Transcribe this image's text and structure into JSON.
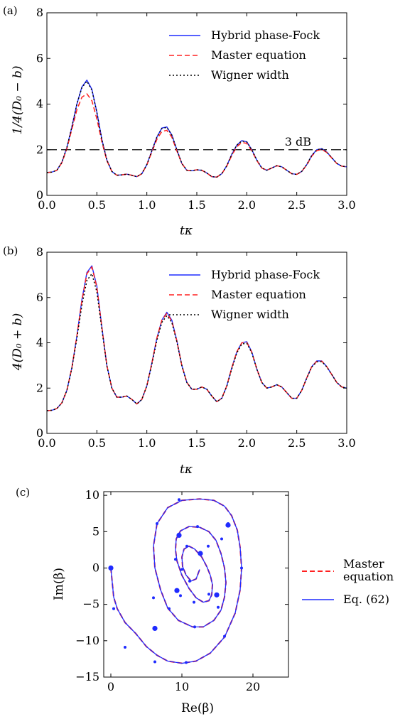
{
  "chart_data": [
    {
      "type": "line",
      "panel_label": "(a)",
      "xlabel": "tκ",
      "ylabel": "1/4(D₀ − b)",
      "xlim": [
        0,
        3
      ],
      "ylim": [
        0,
        8
      ],
      "xticks": [
        0,
        0.5,
        1,
        1.5,
        2,
        2.5,
        3
      ],
      "xtick_labels": [
        "0.0",
        "0.5",
        "1.0",
        "1.5",
        "2.0",
        "2.5",
        "3.0"
      ],
      "yticks": [
        0,
        2,
        4,
        6,
        8
      ],
      "ytick_labels": [
        "0",
        "2",
        "4",
        "6",
        "8"
      ],
      "legend_position": "top-right",
      "series": [
        {
          "name": "Hybrid phase-Fock",
          "style": "solid",
          "color": "#1f2bff"
        },
        {
          "name": "Master equation",
          "style": "dashed",
          "color": "#ff2020"
        },
        {
          "name": "Wigner width",
          "style": "dotted",
          "color": "#000000"
        }
      ],
      "x": [
        0,
        0.05,
        0.1,
        0.15,
        0.2,
        0.25,
        0.3,
        0.35,
        0.4,
        0.45,
        0.5,
        0.55,
        0.6,
        0.65,
        0.7,
        0.75,
        0.8,
        0.85,
        0.9,
        0.95,
        1.0,
        1.05,
        1.1,
        1.15,
        1.2,
        1.25,
        1.3,
        1.35,
        1.4,
        1.45,
        1.5,
        1.55,
        1.6,
        1.65,
        1.7,
        1.75,
        1.8,
        1.85,
        1.9,
        1.95,
        2.0,
        2.05,
        2.1,
        2.15,
        2.2,
        2.25,
        2.3,
        2.35,
        2.4,
        2.45,
        2.5,
        2.55,
        2.6,
        2.65,
        2.7,
        2.75,
        2.8,
        2.85,
        2.9,
        2.95,
        3.0
      ],
      "values": {
        "Hybrid phase-Fock": [
          1.0,
          1.02,
          1.1,
          1.45,
          2.1,
          3.0,
          4.0,
          4.75,
          5.05,
          4.65,
          3.65,
          2.45,
          1.55,
          1.05,
          0.88,
          0.9,
          0.93,
          0.88,
          0.82,
          0.95,
          1.35,
          1.95,
          2.55,
          2.95,
          3.0,
          2.65,
          2.0,
          1.4,
          1.1,
          1.08,
          1.12,
          1.1,
          0.98,
          0.82,
          0.8,
          0.95,
          1.3,
          1.8,
          2.2,
          2.4,
          2.35,
          2.0,
          1.55,
          1.2,
          1.1,
          1.2,
          1.3,
          1.25,
          1.1,
          0.95,
          0.92,
          1.05,
          1.35,
          1.75,
          2.0,
          2.05,
          1.9,
          1.65,
          1.4,
          1.28,
          1.25
        ],
        "Master equation": [
          1.0,
          1.02,
          1.1,
          1.43,
          2.05,
          2.9,
          3.75,
          4.3,
          4.45,
          4.15,
          3.35,
          2.35,
          1.52,
          1.05,
          0.88,
          0.9,
          0.93,
          0.88,
          0.82,
          0.95,
          1.33,
          1.9,
          2.45,
          2.8,
          2.85,
          2.55,
          1.95,
          1.4,
          1.1,
          1.08,
          1.12,
          1.1,
          0.98,
          0.82,
          0.8,
          0.95,
          1.28,
          1.75,
          2.13,
          2.32,
          2.28,
          1.96,
          1.53,
          1.2,
          1.1,
          1.2,
          1.3,
          1.25,
          1.1,
          0.95,
          0.92,
          1.05,
          1.33,
          1.72,
          1.96,
          2.02,
          1.88,
          1.64,
          1.4,
          1.28,
          1.25
        ],
        "Wigner width": [
          1.0,
          1.02,
          1.1,
          1.45,
          2.1,
          3.0,
          4.0,
          4.72,
          5.0,
          4.62,
          3.63,
          2.44,
          1.55,
          1.05,
          0.88,
          0.9,
          0.93,
          0.88,
          0.82,
          0.95,
          1.35,
          1.95,
          2.55,
          2.93,
          2.98,
          2.64,
          2.0,
          1.4,
          1.1,
          1.08,
          1.12,
          1.1,
          0.98,
          0.82,
          0.8,
          0.95,
          1.3,
          1.8,
          2.2,
          2.38,
          2.34,
          2.0,
          1.55,
          1.2,
          1.1,
          1.2,
          1.3,
          1.25,
          1.1,
          0.95,
          0.92,
          1.05,
          1.35,
          1.75,
          2.0,
          2.04,
          1.9,
          1.65,
          1.4,
          1.28,
          1.25
        ]
      },
      "reference_line": {
        "y": 2,
        "label": "3 dB",
        "style": "long-dash",
        "color": "#000000"
      }
    },
    {
      "type": "line",
      "panel_label": "(b)",
      "xlabel": "tκ",
      "ylabel": "4(D₀ + b)",
      "xlim": [
        0,
        3
      ],
      "ylim": [
        0,
        8
      ],
      "xticks": [
        0,
        0.5,
        1,
        1.5,
        2,
        2.5,
        3
      ],
      "xtick_labels": [
        "0.0",
        "0.5",
        "1.0",
        "1.5",
        "2.0",
        "2.5",
        "3.0"
      ],
      "yticks": [
        0,
        2,
        4,
        6,
        8
      ],
      "ytick_labels": [
        "0",
        "2",
        "4",
        "6",
        "8"
      ],
      "legend_position": "top-right",
      "series": [
        {
          "name": "Hybrid phase-Fock",
          "style": "solid",
          "color": "#1f2bff"
        },
        {
          "name": "Master equation",
          "style": "dashed",
          "color": "#ff2020"
        },
        {
          "name": "Wigner width",
          "style": "dotted",
          "color": "#000000"
        }
      ],
      "x": [
        0,
        0.05,
        0.1,
        0.15,
        0.2,
        0.25,
        0.3,
        0.35,
        0.4,
        0.45,
        0.5,
        0.55,
        0.6,
        0.65,
        0.7,
        0.75,
        0.8,
        0.85,
        0.9,
        0.95,
        1.0,
        1.05,
        1.1,
        1.15,
        1.2,
        1.25,
        1.3,
        1.35,
        1.4,
        1.45,
        1.5,
        1.55,
        1.6,
        1.65,
        1.7,
        1.75,
        1.8,
        1.85,
        1.9,
        1.95,
        2.0,
        2.05,
        2.1,
        2.15,
        2.2,
        2.25,
        2.3,
        2.35,
        2.4,
        2.45,
        2.5,
        2.55,
        2.6,
        2.65,
        2.7,
        2.75,
        2.8,
        2.85,
        2.9,
        2.95,
        3.0
      ],
      "values": {
        "Hybrid phase-Fock": [
          1.0,
          1.02,
          1.1,
          1.35,
          1.9,
          2.9,
          4.3,
          5.9,
          7.1,
          7.4,
          6.5,
          4.7,
          3.0,
          2.0,
          1.6,
          1.6,
          1.65,
          1.5,
          1.3,
          1.5,
          2.1,
          3.1,
          4.2,
          5.0,
          5.35,
          5.0,
          4.1,
          3.0,
          2.25,
          1.95,
          1.95,
          2.05,
          1.95,
          1.65,
          1.4,
          1.55,
          2.1,
          2.9,
          3.6,
          4.0,
          4.05,
          3.6,
          2.85,
          2.25,
          2.0,
          2.05,
          2.15,
          2.05,
          1.8,
          1.55,
          1.55,
          1.9,
          2.45,
          2.95,
          3.2,
          3.2,
          2.95,
          2.6,
          2.25,
          2.05,
          2.0
        ],
        "Master equation": [
          1.0,
          1.02,
          1.1,
          1.35,
          1.9,
          2.9,
          4.3,
          5.85,
          7.05,
          7.35,
          6.45,
          4.68,
          3.0,
          2.0,
          1.6,
          1.6,
          1.65,
          1.5,
          1.3,
          1.5,
          2.1,
          3.1,
          4.2,
          5.0,
          5.3,
          4.96,
          4.08,
          3.0,
          2.25,
          1.95,
          1.95,
          2.05,
          1.95,
          1.65,
          1.4,
          1.55,
          2.1,
          2.9,
          3.6,
          4.0,
          4.02,
          3.58,
          2.85,
          2.25,
          2.0,
          2.05,
          2.15,
          2.05,
          1.8,
          1.55,
          1.55,
          1.9,
          2.45,
          2.95,
          3.18,
          3.19,
          2.95,
          2.6,
          2.25,
          2.05,
          2.0
        ],
        "Wigner width": [
          1.0,
          1.02,
          1.1,
          1.35,
          1.9,
          2.88,
          4.2,
          5.65,
          6.75,
          7.05,
          6.25,
          4.6,
          2.98,
          2.0,
          1.6,
          1.6,
          1.65,
          1.5,
          1.3,
          1.5,
          2.1,
          3.05,
          4.1,
          4.9,
          5.2,
          4.9,
          4.05,
          3.0,
          2.25,
          1.95,
          1.95,
          2.05,
          1.95,
          1.65,
          1.4,
          1.55,
          2.08,
          2.85,
          3.55,
          3.95,
          3.98,
          3.56,
          2.84,
          2.25,
          2.0,
          2.05,
          2.15,
          2.05,
          1.8,
          1.55,
          1.55,
          1.9,
          2.44,
          2.93,
          3.16,
          3.17,
          2.94,
          2.6,
          2.25,
          2.05,
          2.0
        ]
      }
    },
    {
      "type": "line",
      "panel_label": "(c)",
      "xlabel": "Re(β)",
      "ylabel": "Im(β)",
      "xlim": [
        -1,
        25
      ],
      "ylim": [
        -15,
        10.5
      ],
      "xticks": [
        0,
        10,
        20
      ],
      "xtick_labels": [
        "0",
        "10",
        "20"
      ],
      "yticks": [
        -15,
        -10,
        -5,
        0,
        5,
        10
      ],
      "ytick_labels": [
        "−15",
        "−10",
        "−5",
        "0",
        "5",
        "10"
      ],
      "legend_position": "right, outside",
      "series": [
        {
          "name": "Master equation",
          "style": "dashed",
          "color": "#ff2020"
        },
        {
          "name": "Eq. (62)",
          "style": "solid",
          "color": "#1f2bff"
        }
      ],
      "trajectory": {
        "re": [
          0,
          0.2,
          0.4,
          0.9,
          2,
          3.5,
          5,
          6.5,
          8,
          10,
          12,
          14,
          16,
          17.5,
          18.2,
          18.4,
          18.2,
          17.8,
          17,
          16,
          14.5,
          12.5,
          10,
          8,
          6.5,
          6,
          6.2,
          7,
          8,
          9.5,
          11.5,
          13,
          14.5,
          15.5,
          16,
          16.2,
          16,
          15.5,
          14.8,
          13.8,
          12.5,
          11,
          9.8,
          9.2,
          9.1,
          9.3,
          10,
          11,
          12,
          13,
          13.8,
          14.2,
          14.3,
          14,
          13.5,
          12.8,
          11.8,
          11,
          10.3,
          10,
          10.1,
          10.6,
          11.3,
          12,
          12.5
        ],
        "im": [
          0,
          -2,
          -4,
          -5.6,
          -7.5,
          -9,
          -10.8,
          -12,
          -12.8,
          -13.1,
          -12.8,
          -11.7,
          -9.5,
          -6.2,
          -3,
          0,
          2.8,
          5.2,
          7.2,
          8.5,
          9.3,
          9.5,
          9.3,
          8.3,
          6.1,
          3,
          0,
          -3,
          -5.5,
          -7.2,
          -8.1,
          -8.1,
          -7.2,
          -5.8,
          -4,
          -2,
          0,
          2,
          3.8,
          5,
          5.6,
          5.7,
          5.1,
          4,
          2.5,
          1,
          -1,
          -2.8,
          -4.1,
          -4.7,
          -4.5,
          -3.7,
          -2.3,
          -1,
          0.2,
          1.5,
          2.6,
          3.0,
          2.6,
          1.5,
          0.2,
          -1,
          -1.8,
          -1.5,
          -0.2
        ],
        "markers_small": [
          [
            0.4,
            -5.6
          ],
          [
            2,
            -10.9
          ],
          [
            6.2,
            -12.9
          ],
          [
            10.6,
            -13.0
          ],
          [
            16,
            -9.4
          ],
          [
            18.4,
            0
          ],
          [
            16.5,
            6.1
          ],
          [
            9.6,
            9.4
          ],
          [
            6.5,
            6.1
          ],
          [
            6.0,
            -4.1
          ],
          [
            8.2,
            -5.6
          ],
          [
            11.8,
            -8.1
          ],
          [
            15.1,
            -5.4
          ],
          [
            15.6,
            4.0
          ],
          [
            12.2,
            5.7
          ],
          [
            9.1,
            1.2
          ],
          [
            9.8,
            -3.8
          ],
          [
            11.7,
            -4.7
          ],
          [
            13.8,
            -3.6
          ],
          [
            13.7,
            3.0
          ],
          [
            10.7,
            3.0
          ],
          [
            10.0,
            -0.2
          ],
          [
            11.1,
            -1.8
          ]
        ],
        "markers_large": [
          [
            0,
            0
          ],
          [
            6.2,
            -8.3
          ],
          [
            16.5,
            5.9
          ],
          [
            9.6,
            4.5
          ],
          [
            14.9,
            -3.7
          ],
          [
            9.3,
            -3.1
          ],
          [
            12.6,
            2.0
          ]
        ]
      }
    }
  ]
}
